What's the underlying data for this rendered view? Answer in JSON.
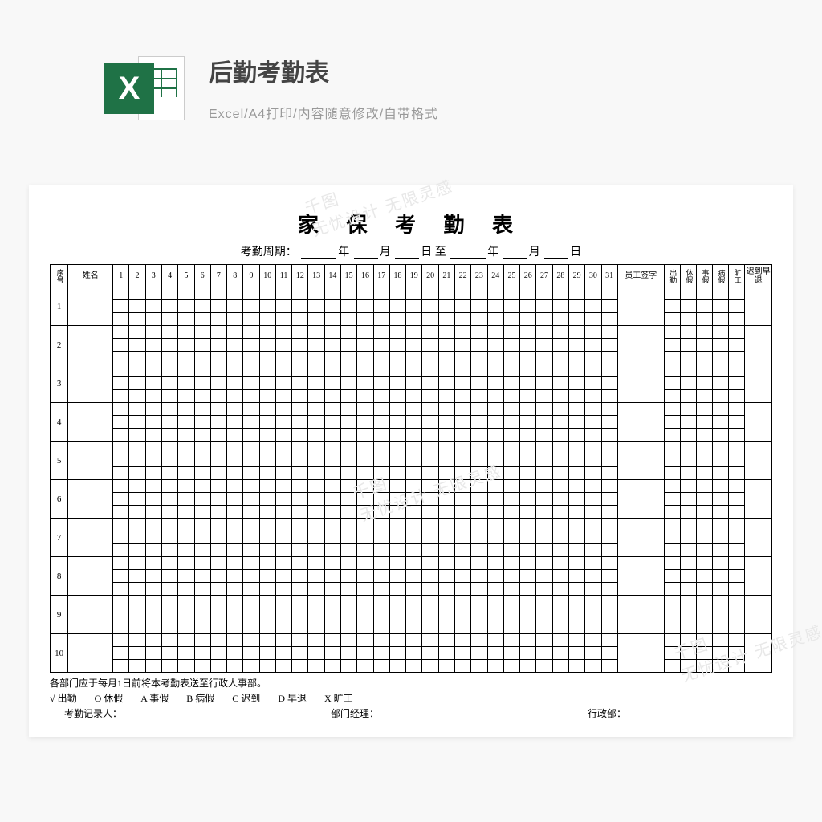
{
  "header": {
    "title": "后勤考勤表",
    "subtitle": "Excel/A4打印/内容随意修改/自带格式",
    "icon_letter": "X",
    "icon_color": "#1f7246"
  },
  "sheet": {
    "title": "家 保 考 勤 表",
    "period_label": "考勤周期：",
    "period_y": "年",
    "period_m": "月",
    "period_d": "日",
    "period_to": "至",
    "columns": {
      "seq": "序号",
      "name": "姓名",
      "days": [
        "1",
        "2",
        "3",
        "4",
        "5",
        "6",
        "7",
        "8",
        "9",
        "10",
        "11",
        "12",
        "13",
        "14",
        "15",
        "16",
        "17",
        "18",
        "19",
        "20",
        "21",
        "22",
        "23",
        "24",
        "25",
        "26",
        "27",
        "28",
        "29",
        "30",
        "31"
      ],
      "sign": "员工签字",
      "stats": [
        "出勤",
        "休假",
        "事假",
        "病假",
        "旷工"
      ],
      "late": "迟到早退"
    },
    "row_count": 10,
    "subrows_per_row": 3,
    "footer": {
      "note": "各部门应于每月1日前将本考勤表送至行政人事部。",
      "legend": [
        "√ 出勤",
        "O 休假",
        "A 事假",
        "B 病假",
        "C 迟到",
        "D 早退",
        "X 旷工"
      ],
      "sig1": "考勤记录人：",
      "sig2": "部门经理：",
      "sig3": "行政部："
    }
  },
  "watermark": {
    "text": "千图",
    "sub": "无忧设计 无限灵感"
  },
  "colors": {
    "page_bg": "#f8f8f8",
    "sheet_bg": "#ffffff",
    "border": "#000000",
    "title": "#444444",
    "subtitle": "#999999",
    "watermark": "#e8e8e8"
  }
}
